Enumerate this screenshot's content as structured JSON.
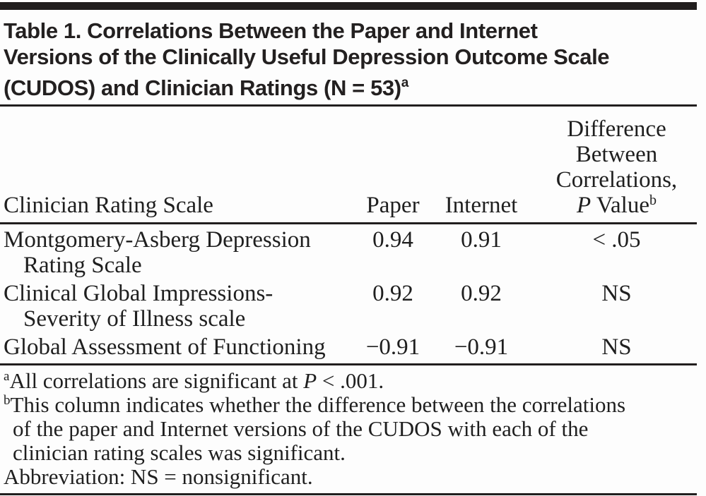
{
  "colors": {
    "ink": "#1f1f1f",
    "rule": "#211e1e",
    "background": "#fdfdfd"
  },
  "table": {
    "title": {
      "lines": [
        "Table 1. Correlations Between the Paper and Internet",
        "Versions of the Clinically Useful Depression Outcome Scale",
        "(CUDOS) and Clinician Ratings (N = 53)"
      ],
      "superscript": "a"
    },
    "header": {
      "col1": "Clinician Rating Scale",
      "col2": "Paper",
      "col3": "Internet",
      "col4_lines": [
        "Difference",
        "Between",
        "Correlations,"
      ],
      "col4_p": "P",
      "col4_value": " Value",
      "col4_sup": "b"
    },
    "rows": [
      {
        "name_line1": "Montgomery-Asberg Depression",
        "name_line2": "Rating Scale",
        "paper": "0.94",
        "internet": "0.91",
        "pvalue": "< .05"
      },
      {
        "name_line1": "Clinical Global Impressions-",
        "name_line2": "Severity of Illness scale",
        "paper": "0.92",
        "internet": "0.92",
        "pvalue": "NS"
      },
      {
        "name_line1": "Global Assessment of Functioning",
        "paper": "−0.91",
        "internet": "−0.91",
        "pvalue": "NS"
      }
    ],
    "footnotes": {
      "a": {
        "sup": "a",
        "pre": "All correlations are significant at ",
        "italic": "P",
        "post": " < .001."
      },
      "b": {
        "sup": "b",
        "line1": "This column indicates whether the difference between the correlations",
        "line2": "of the paper and Internet versions of the CUDOS with each of the",
        "line3": "clinician rating scales was significant."
      },
      "abbreviation": "Abbreviation: NS = nonsignificant."
    }
  },
  "chart_data": {
    "type": "table",
    "title": "Table 1. Correlations Between the Paper and Internet Versions of the Clinically Useful Depression Outcome Scale (CUDOS) and Clinician Ratings (N = 53)",
    "columns": [
      "Clinician Rating Scale",
      "Paper",
      "Internet",
      "Difference Between Correlations, P Value"
    ],
    "rows": [
      [
        "Montgomery-Asberg Depression Rating Scale",
        0.94,
        0.91,
        "< .05"
      ],
      [
        "Clinical Global Impressions-Severity of Illness scale",
        0.92,
        0.92,
        "NS"
      ],
      [
        "Global Assessment of Functioning",
        -0.91,
        -0.91,
        "NS"
      ]
    ],
    "n": 53,
    "footnotes": [
      "All correlations are significant at P < .001.",
      "This column indicates whether the difference between the correlations of the paper and Internet versions of the CUDOS with each of the clinician rating scales was significant.",
      "Abbreviation: NS = nonsignificant."
    ]
  }
}
